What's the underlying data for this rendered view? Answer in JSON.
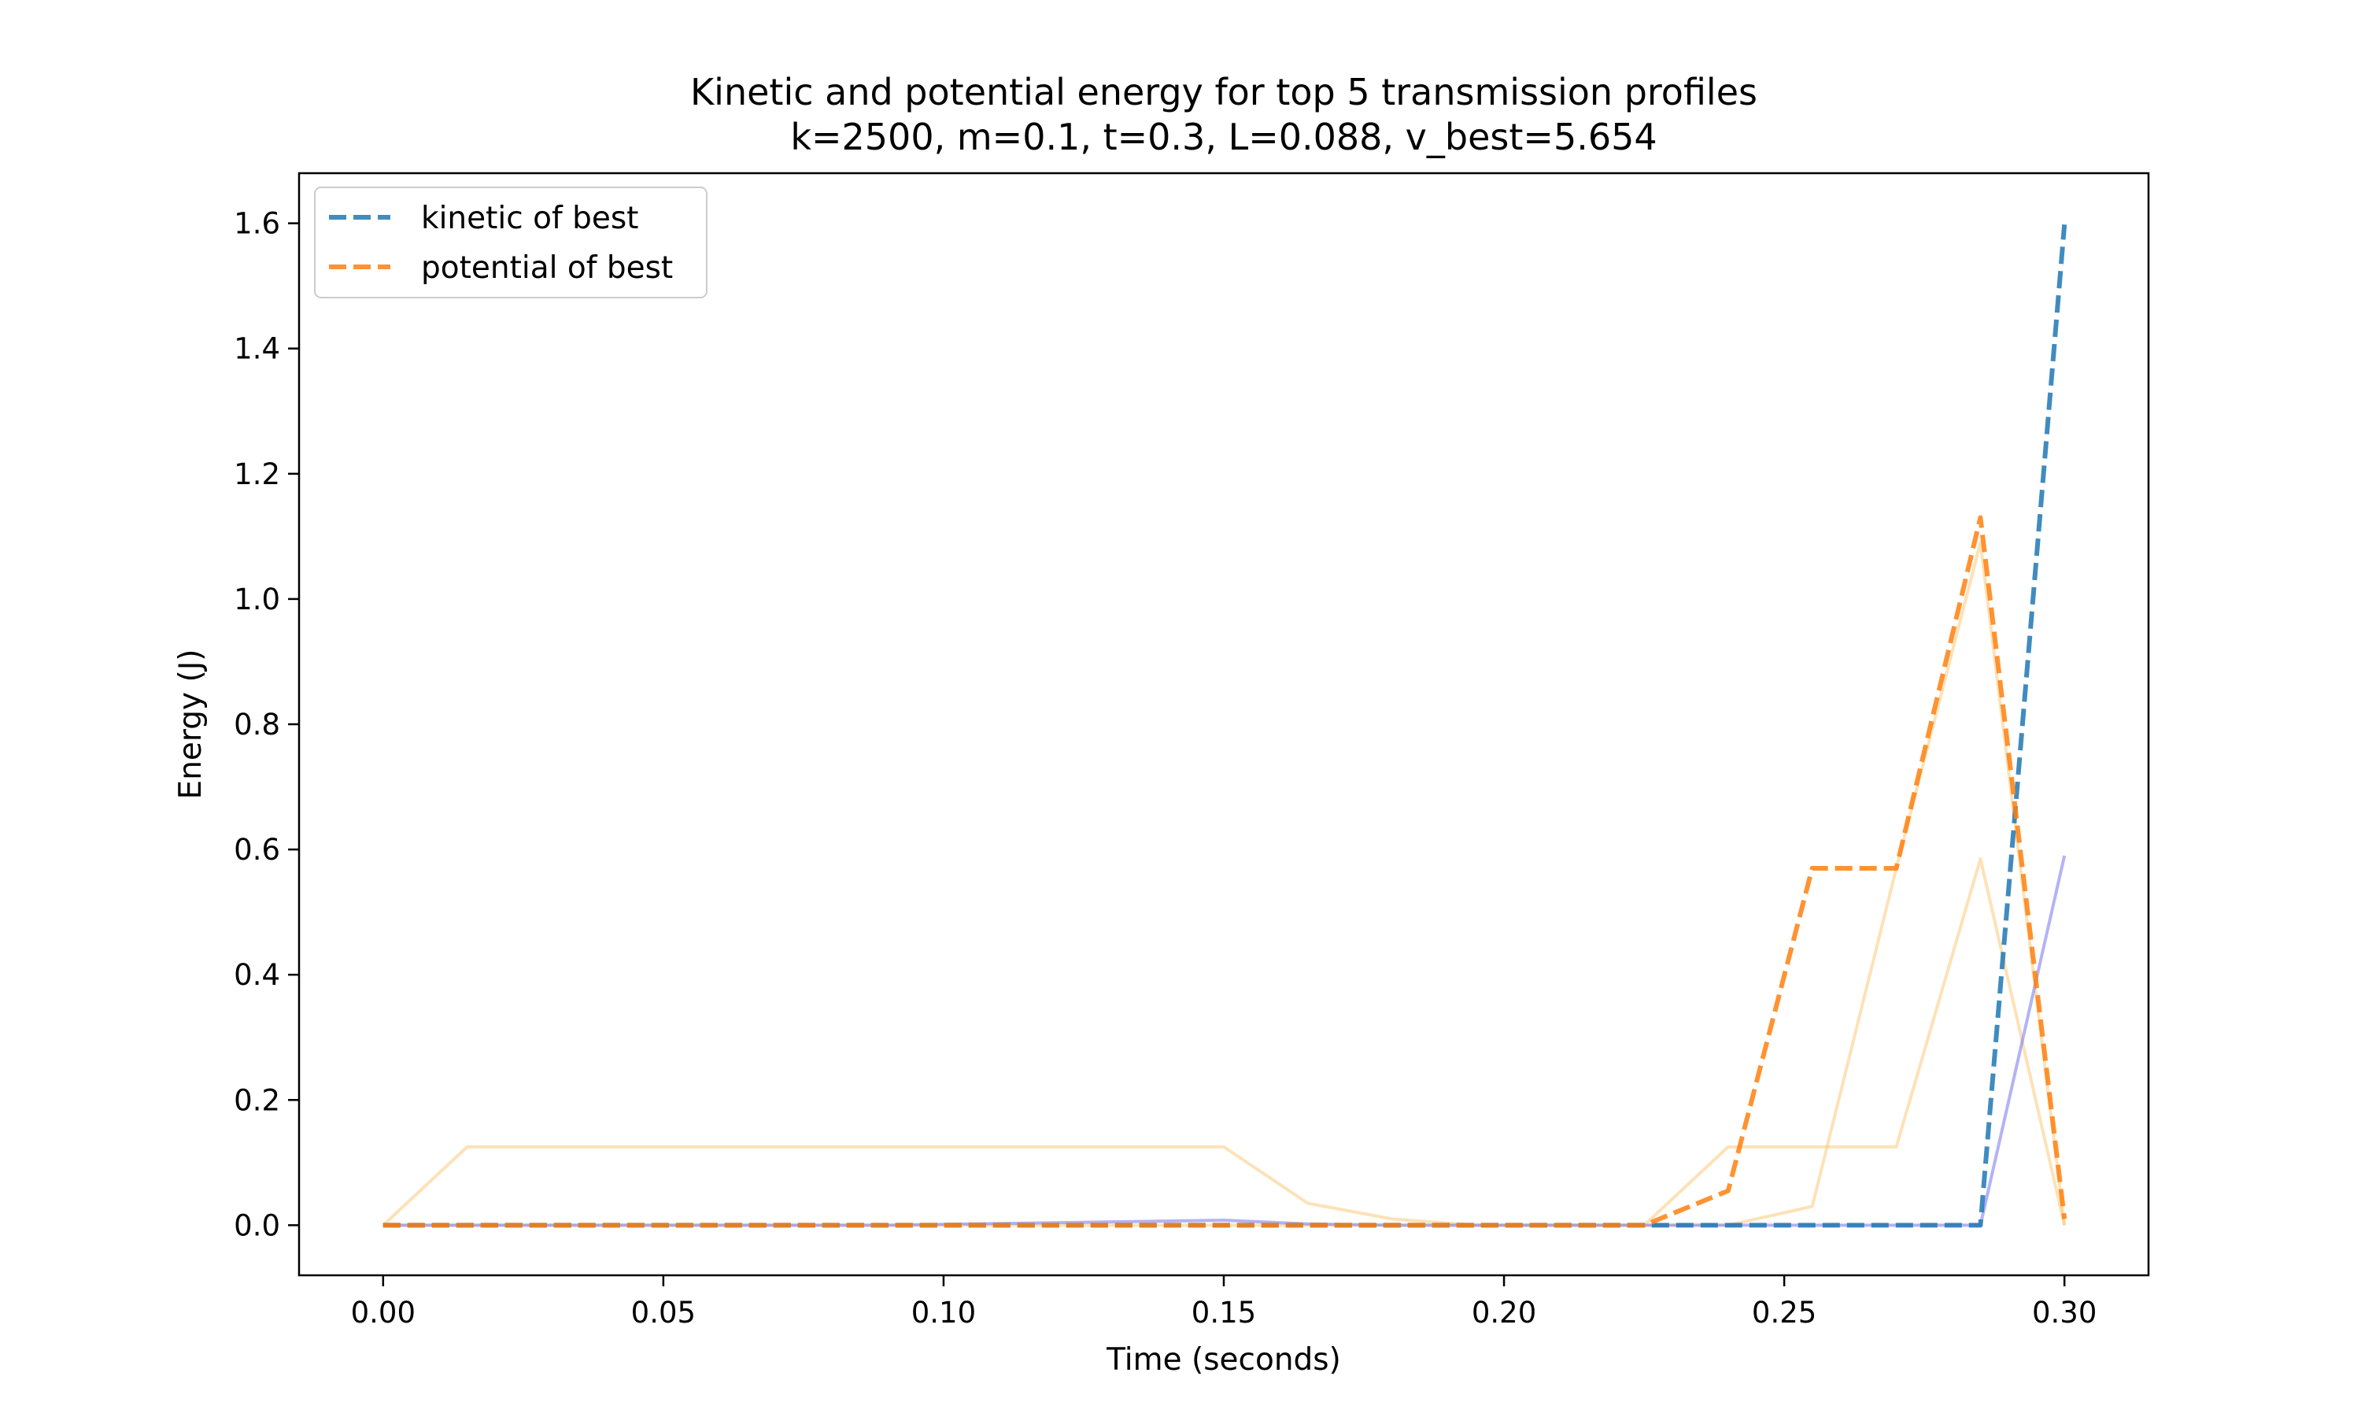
{
  "chart_data": {
    "type": "line",
    "title": "Kinetic and potential energy for top 5 transmission profiles",
    "subtitle": "k=2500, m=0.1, t=0.3, L=0.088, v_best=5.654",
    "xlabel": "Time (seconds)",
    "ylabel": "Energy (J)",
    "xlim": [
      -0.015,
      0.315
    ],
    "ylim": [
      -0.08,
      1.68
    ],
    "xticks": [
      "0.00",
      "0.05",
      "0.10",
      "0.15",
      "0.20",
      "0.25",
      "0.30"
    ],
    "yticks": [
      "0.0",
      "0.2",
      "0.4",
      "0.6",
      "0.8",
      "1.0",
      "1.2",
      "1.4",
      "1.6"
    ],
    "grid": false,
    "legend_position": "upper-left",
    "colors": {
      "kinetic_best": "#1f77b4",
      "potential_best": "#ff7f0e",
      "kinetic_others": "#8080ee",
      "potential_others": "#fbbf5f"
    },
    "series": [
      {
        "name": "",
        "kind": "potential-other",
        "x": [
          0,
          0.015,
          0.03,
          0.045,
          0.06,
          0.075,
          0.09,
          0.105,
          0.12,
          0.135,
          0.15,
          0.165,
          0.18,
          0.195,
          0.21,
          0.225,
          0.24,
          0.255,
          0.27,
          0.285,
          0.3
        ],
        "y": [
          0,
          0.125,
          0.125,
          0.125,
          0.125,
          0.125,
          0.125,
          0.125,
          0.125,
          0.125,
          0.125,
          0.035,
          0.01,
          0,
          0,
          0,
          0.125,
          0.125,
          0.125,
          0.585,
          0
        ]
      },
      {
        "name": "",
        "kind": "potential-other",
        "x": [
          0,
          0.015,
          0.03,
          0.045,
          0.06,
          0.075,
          0.09,
          0.105,
          0.12,
          0.135,
          0.15,
          0.165,
          0.18,
          0.195,
          0.21,
          0.225,
          0.24,
          0.255,
          0.27,
          0.285,
          0.3
        ],
        "y": [
          0,
          0,
          0,
          0,
          0,
          0,
          0,
          0,
          0,
          0,
          0,
          0,
          0,
          0,
          0,
          0,
          0,
          0.03,
          0.57,
          1.09,
          0
        ]
      },
      {
        "name": "",
        "kind": "kinetic-other",
        "x": [
          0,
          0.015,
          0.03,
          0.045,
          0.06,
          0.075,
          0.09,
          0.105,
          0.12,
          0.135,
          0.15,
          0.165,
          0.18,
          0.195,
          0.21,
          0.225,
          0.24,
          0.255,
          0.27,
          0.285,
          0.3
        ],
        "y": [
          0,
          0,
          0,
          0,
          0,
          0,
          0,
          0.002,
          0.004,
          0.006,
          0.008,
          0.002,
          0,
          0,
          0,
          0,
          0,
          0,
          0,
          0,
          0.59
        ]
      },
      {
        "name": "kinetic of best",
        "kind": "kinetic-best",
        "x": [
          0,
          0.015,
          0.03,
          0.045,
          0.06,
          0.075,
          0.09,
          0.105,
          0.12,
          0.135,
          0.15,
          0.165,
          0.18,
          0.195,
          0.21,
          0.225,
          0.24,
          0.255,
          0.27,
          0.285,
          0.3
        ],
        "y": [
          0,
          0,
          0,
          0,
          0,
          0,
          0,
          0,
          0,
          0,
          0,
          0,
          0,
          0,
          0,
          0,
          0,
          0,
          0,
          0,
          1.598
        ]
      },
      {
        "name": "potential of best",
        "kind": "potential-best",
        "x": [
          0,
          0.015,
          0.03,
          0.045,
          0.06,
          0.075,
          0.09,
          0.105,
          0.12,
          0.135,
          0.15,
          0.165,
          0.18,
          0.195,
          0.21,
          0.225,
          0.24,
          0.255,
          0.27,
          0.285,
          0.3
        ],
        "y": [
          0,
          0,
          0,
          0,
          0,
          0,
          0,
          0,
          0,
          0,
          0,
          0,
          0,
          0,
          0,
          0,
          0.055,
          0.57,
          0.57,
          1.13,
          0.01
        ]
      }
    ]
  }
}
